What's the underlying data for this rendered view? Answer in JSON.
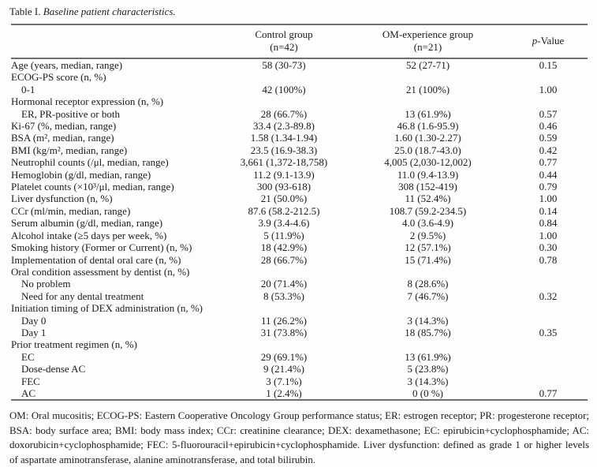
{
  "title": {
    "label": "Table I.",
    "caption": "Baseline patient characteristics."
  },
  "header": {
    "control_line1": "Control group",
    "control_line2": "(n=42)",
    "om_line1": "OM-experience group",
    "om_line2": "(n=21)",
    "p_italic": "p",
    "p_rest": "-Value"
  },
  "table": {
    "rows": [
      {
        "label": "Age (years, median, range)",
        "indent": false,
        "control": "58 (30-73)",
        "om": "52 (27-71)",
        "p": "0.15"
      },
      {
        "label": "ECOG-PS score (n, %)",
        "indent": false,
        "control": "",
        "om": "",
        "p": ""
      },
      {
        "label": "0-1",
        "indent": true,
        "control": "42 (100%)",
        "om": "21 (100%)",
        "p": "1.00"
      },
      {
        "label": "Hormonal receptor expression (n, %)",
        "indent": false,
        "control": "",
        "om": "",
        "p": ""
      },
      {
        "label": "ER, PR-positive or both",
        "indent": true,
        "control": "28 (66.7%)",
        "om": "13 (61.9%)",
        "p": "0.57"
      },
      {
        "label": "Ki-67 (%, median, range)",
        "indent": false,
        "control": "33.4 (2.3-89.8)",
        "om": "46.8 (1.6-95.9)",
        "p": "0.46"
      },
      {
        "label": "BSA (m², median, range)",
        "indent": false,
        "control": "1.58 (1.34-1.94)",
        "om": "1.60 (1.30-2.27)",
        "p": "0.59"
      },
      {
        "label": "BMI (kg/m², median, range)",
        "indent": false,
        "control": "23.5 (16.9-38.3)",
        "om": "25.0 (18.7-43.0)",
        "p": "0.42"
      },
      {
        "label": "Neutrophil counts (/μl, median, range)",
        "indent": false,
        "control": "3,661 (1,372-18,758)",
        "om": "4,005 (2,030-12,002)",
        "p": "0.77"
      },
      {
        "label": "Hemoglobin (g/dl, median, range)",
        "indent": false,
        "control": "11.2 (9.1-13.9)",
        "om": "11.0 (9.4-13.9)",
        "p": "0.44"
      },
      {
        "label": "Platelet counts (×10³/μl, median, range)",
        "indent": false,
        "control": "300 (93-618)",
        "om": "308 (152-419)",
        "p": "0.79"
      },
      {
        "label": "Liver dysfunction (n, %)",
        "indent": false,
        "control": "21 (50.0%)",
        "om": "11 (52.4%)",
        "p": "1.00"
      },
      {
        "label": "CCr (ml/min, median, range)",
        "indent": false,
        "control": "87.6 (58.2-212.5)",
        "om": "108.7 (59.2-234.5)",
        "p": "0.14"
      },
      {
        "label": "Serum albumin (g/dl, median, range)",
        "indent": false,
        "control": "3.9 (3.4-4.6)",
        "om": "4.0 (3.6-4.9)",
        "p": "0.84"
      },
      {
        "label": "Alcohol intake (≥5 days per week, %)",
        "indent": false,
        "control": "5 (11.9%)",
        "om": "2 (9.5%)",
        "p": "1.00"
      },
      {
        "label": "Smoking history (Former or Current) (n, %)",
        "indent": false,
        "control": "18 (42.9%)",
        "om": "12 (57.1%)",
        "p": "0.30"
      },
      {
        "label": "Implementation of dental oral care (n, %)",
        "indent": false,
        "control": "28 (66.7%)",
        "om": "15 (71.4%)",
        "p": "0.78"
      },
      {
        "label": "Oral condition assessment by dentist (n, %)",
        "indent": false,
        "control": "",
        "om": "",
        "p": ""
      },
      {
        "label": "No problem",
        "indent": true,
        "control": "20 (71.4%)",
        "om": "8 (28.6%)",
        "p": ""
      },
      {
        "label": "Need for any dental treatment",
        "indent": true,
        "control": "8 (53.3%)",
        "om": "7 (46.7%)",
        "p": "0.32"
      },
      {
        "label": "Initiation timing of DEX administration (n, %)",
        "indent": false,
        "control": "",
        "om": "",
        "p": ""
      },
      {
        "label": "Day 0",
        "indent": true,
        "control": "11 (26.2%)",
        "om": "3 (14.3%)",
        "p": ""
      },
      {
        "label": "Day 1",
        "indent": true,
        "control": "31 (73.8%)",
        "om": "18 (85.7%)",
        "p": "0.35"
      },
      {
        "label": "Prior treatment regimen (n, %)",
        "indent": false,
        "control": "",
        "om": "",
        "p": ""
      },
      {
        "label": "EC",
        "indent": true,
        "control": "29 (69.1%)",
        "om": "13 (61.9%)",
        "p": ""
      },
      {
        "label": "Dose-dense AC",
        "indent": true,
        "control": "9 (21.4%)",
        "om": "5 (23.8%)",
        "p": ""
      },
      {
        "label": "FEC",
        "indent": true,
        "control": "3 (7.1%)",
        "om": "3 (14.3%)",
        "p": ""
      },
      {
        "label": "AC",
        "indent": true,
        "control": "1 (2.4%)",
        "om": "0 (0 %)",
        "p": "0.77"
      }
    ]
  },
  "footnote": "OM: Oral mucositis; ECOG-PS: Eastern Cooperative Oncology Group performance status; ER: estrogen receptor; PR: progesterone receptor; BSA: body surface area; BMI: body mass index; CCr: creatinine clearance; DEX: dexamethasone; EC: epirubicin+cyclophosphamide; AC: doxorubicin+cyclophosphamide; FEC: 5-fluorouracil+epirubicin+cyclophosphamide. Liver dysfunction: defined as grade 1 or higher levels of aspartate aminotransferase, alanine aminotransferase, and total bilirubin."
}
